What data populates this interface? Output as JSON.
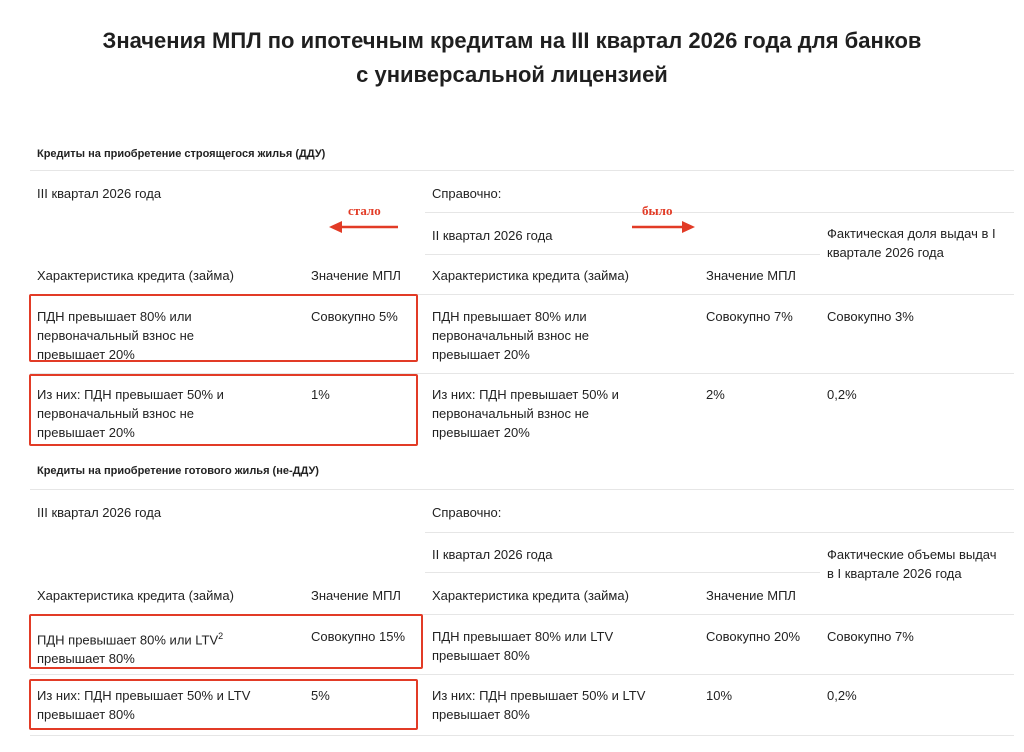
{
  "title_line1": "Значения МПЛ по ипотечным кредитам на III квартал 2026 года для банков",
  "title_line2": "с универсальной лицензией",
  "annotations": {
    "became": "стало",
    "was": "было",
    "accent_color": "#e23b26"
  },
  "sections": [
    {
      "heading": "Кредиты на приобретение строящегося жилья (ДДУ)",
      "period_current": "III квартал 2026 года",
      "reference": "Справочно:",
      "period_previous": "II квартал 2026 года",
      "share_header": "Фактическая доля выдач в I квартале 2026 года",
      "col_characteristic": "Характеристика кредита (займа)",
      "col_value": "Значение МПЛ",
      "rows": [
        {
          "char": "ПДН превышает 80% или первоначальный взнос не превышает 20%",
          "current": "Совокупно 5%",
          "previous": "Совокупно 7%",
          "actual": "Совокупно 3%"
        },
        {
          "char": "Из них: ПДН превышает 50% и первоначальный взнос не превышает 20%",
          "current": "1%",
          "previous": "2%",
          "actual": "0,2%"
        }
      ]
    },
    {
      "heading": "Кредиты на приобретение готового жилья (не-ДДУ)",
      "period_current": "III квартал 2026 года",
      "reference": "Справочно:",
      "period_previous": "II квартал 2026 года",
      "share_header": "Фактические объемы выдач в I квартале 2026 года",
      "col_characteristic": "Характеристика кредита (займа)",
      "col_value": "Значение МПЛ",
      "rows": [
        {
          "char_a": "ПДН превышает 80% или LTV",
          "char_sup": "2",
          "char_b": "превышает 80%",
          "char": "ПДН превышает 80% или LTV превышает 80%",
          "current": "Совокупно 15%",
          "previous": "Совокупно 20%",
          "actual": "Совокупно 7%"
        },
        {
          "char": "Из них: ПДН превышает 50% и LTV превышает 80%",
          "current": "5%",
          "previous": "10%",
          "actual": "0,2%"
        }
      ]
    }
  ]
}
